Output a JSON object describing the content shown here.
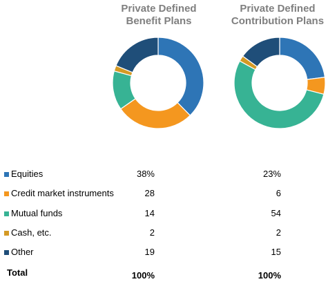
{
  "chart_data": [
    {
      "type": "pie",
      "title_lines": [
        "Private Defined",
        "Benefit Plans"
      ],
      "categories": [
        "Equities",
        "Credit market instruments",
        "Mutual funds",
        "Cash, etc.",
        "Other"
      ],
      "values": [
        38,
        28,
        14,
        2,
        19
      ],
      "display_values": [
        "38%",
        "28",
        "14",
        "2",
        "19"
      ],
      "total_label": "100%",
      "donut": true
    },
    {
      "type": "pie",
      "title_lines": [
        "Private Defined",
        "Contribution Plans"
      ],
      "categories": [
        "Equities",
        "Credit market instruments",
        "Mutual funds",
        "Cash, etc.",
        "Other"
      ],
      "values": [
        23,
        6,
        54,
        2,
        15
      ],
      "display_values": [
        "23%",
        "6",
        "54",
        "2",
        "15"
      ],
      "total_label": "100%",
      "donut": true
    }
  ],
  "legend": {
    "items": [
      {
        "label": "Equities",
        "color": "#2e75b6"
      },
      {
        "label": "Credit market instruments",
        "color": "#f4971f"
      },
      {
        "label": "Mutual funds",
        "color": "#37b394"
      },
      {
        "label": "Cash, etc.",
        "color": "#d49a25"
      },
      {
        "label": "Other",
        "color": "#1f4e79"
      }
    ],
    "total_label": "Total"
  }
}
